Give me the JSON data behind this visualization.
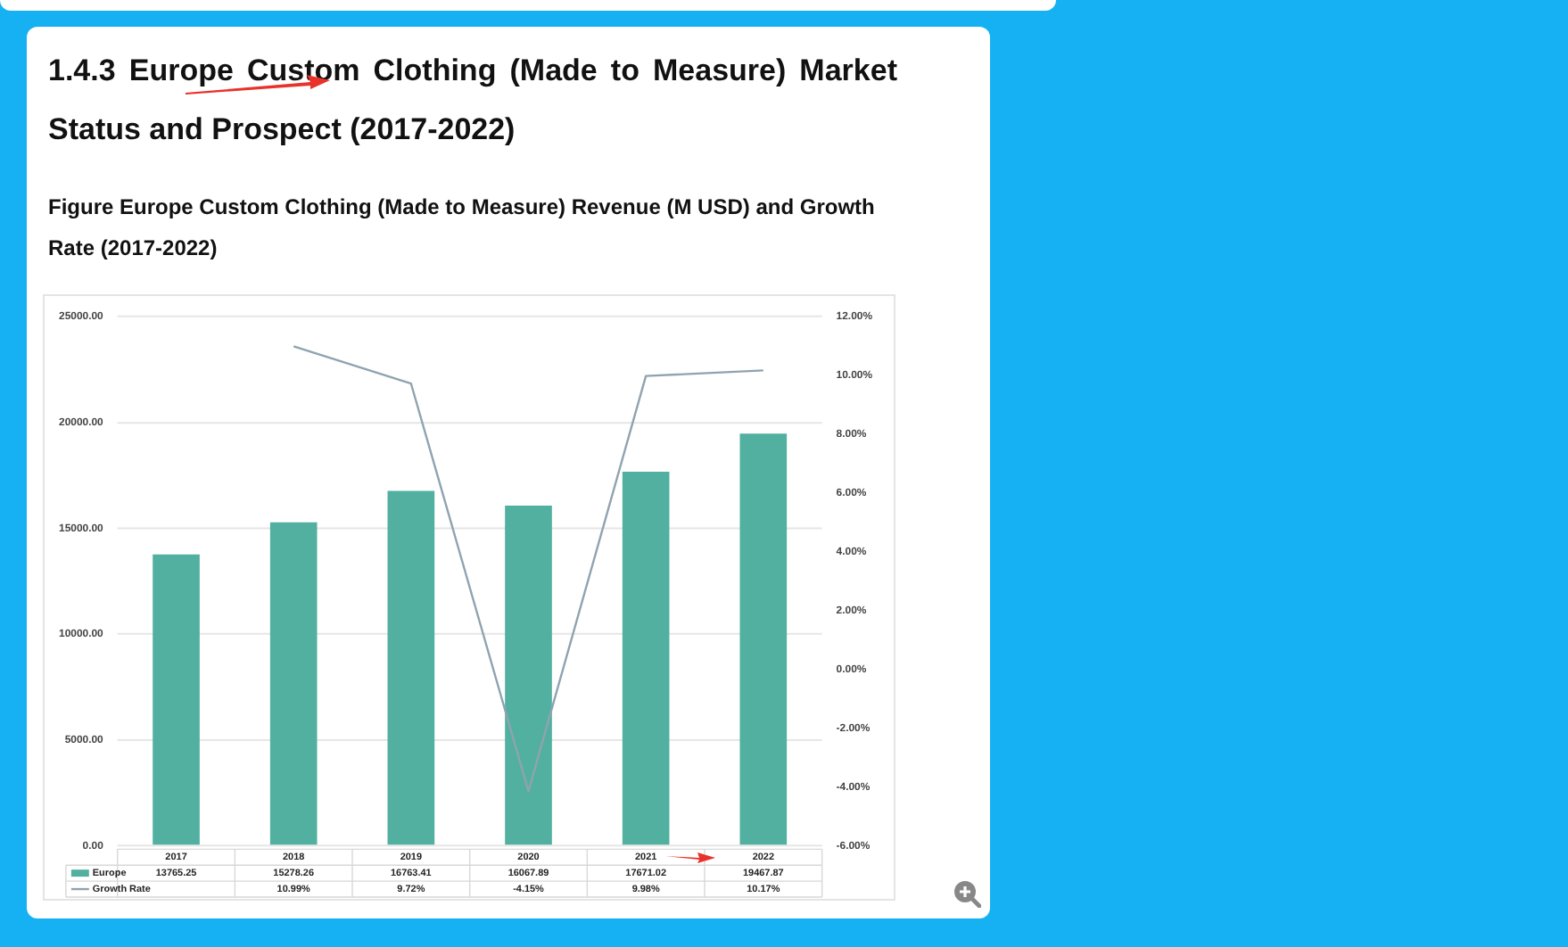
{
  "chart_data": {
    "type": "bar",
    "title": "1.4.3 Europe Custom Clothing (Made to Measure) Market Status and Prospect (2017-2022)",
    "subtitle": "Figure Europe Custom Clothing (Made to Measure) Revenue (M USD) and Growth Rate (2017-2022)",
    "categories": [
      "2017",
      "2018",
      "2019",
      "2020",
      "2021",
      "2022"
    ],
    "series": [
      {
        "name": "Europe",
        "color": "#52b0a0",
        "values": [
          13765.25,
          15278.26,
          16763.41,
          16067.89,
          17671.02,
          19467.87
        ],
        "value_labels": [
          "13765.25",
          "15278.26",
          "16763.41",
          "16067.89",
          "17671.02",
          "19467.87"
        ]
      },
      {
        "name": "Growth Rate",
        "type": "line",
        "axis": "y2",
        "color": "#8fa3b0",
        "values": [
          null,
          10.99,
          9.72,
          -4.15,
          9.98,
          10.17
        ],
        "value_labels": [
          null,
          "10.99%",
          "9.72%",
          "-4.15%",
          "9.98%",
          "10.17%"
        ]
      }
    ],
    "ylim": [
      0,
      25000
    ],
    "yticks": [
      {
        "value": 0,
        "label": "0.00"
      },
      {
        "value": 5000,
        "label": "5000.00"
      },
      {
        "value": 10000,
        "label": "10000.00"
      },
      {
        "value": 15000,
        "label": "15000.00"
      },
      {
        "value": 20000,
        "label": "20000.00"
      },
      {
        "value": 25000,
        "label": "25000.00"
      }
    ],
    "y2lim": [
      -6,
      12
    ],
    "y2ticks": [
      {
        "value": -6,
        "label": "-6.00%"
      },
      {
        "value": -4,
        "label": "-4.00%"
      },
      {
        "value": -2,
        "label": "-2.00%"
      },
      {
        "value": 0,
        "label": "0.00%"
      },
      {
        "value": 2,
        "label": "2.00%"
      },
      {
        "value": 4,
        "label": "4.00%"
      },
      {
        "value": 6,
        "label": "6.00%"
      },
      {
        "value": 8,
        "label": "8.00%"
      },
      {
        "value": 10,
        "label": "10.00%"
      },
      {
        "value": 12,
        "label": "12.00%"
      }
    ],
    "grid": "y",
    "legend": "bottom",
    "marker": "none",
    "line_style": "solid"
  }
}
